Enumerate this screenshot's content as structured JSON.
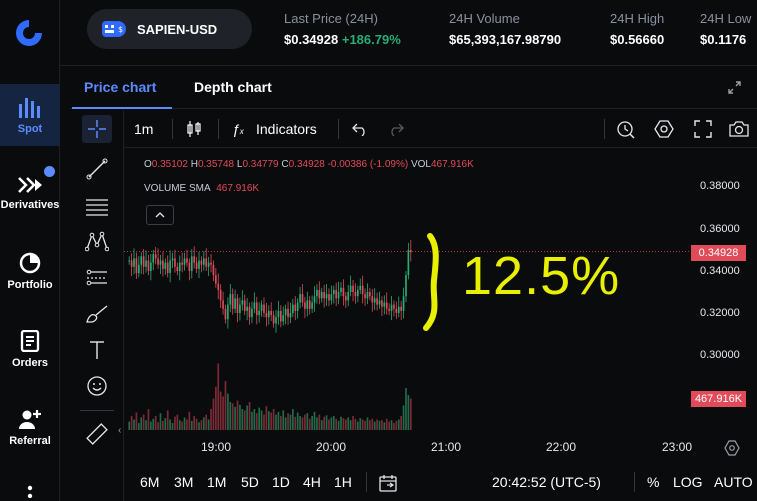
{
  "nav": {
    "items": [
      {
        "label": "Spot",
        "icon": "bar-chart-icon",
        "active": true
      },
      {
        "label": "Derivatives",
        "icon": "derivatives-icon"
      },
      {
        "label": "Portfolio",
        "icon": "pie-chart-icon"
      },
      {
        "label": "Orders",
        "icon": "document-icon"
      },
      {
        "label": "Referral",
        "icon": "add-user-icon"
      }
    ]
  },
  "header": {
    "pair": "SAPIEN-USD",
    "stats": [
      {
        "key": "Last Price (24H)",
        "value": "$0.34928",
        "change": "+186.79%"
      },
      {
        "key": "24H Volume",
        "value": "$65,393,167.98790"
      },
      {
        "key": "24H High",
        "value": "$0.56660"
      },
      {
        "key": "24H Low",
        "value": "$0.1176"
      }
    ]
  },
  "tabs": [
    "Price chart",
    "Depth chart"
  ],
  "toolbar": {
    "interval": "1m",
    "indicators": "Indicators"
  },
  "legend": {
    "o_label": "O",
    "o": "0.35102",
    "h_label": "H",
    "h": "0.35748",
    "l_label": "L",
    "l": "0.34779",
    "c_label": "C",
    "c": "0.34928",
    "change": "-0.00386 (-1.09%)",
    "vol_label": "VOL",
    "vol": "467.916K",
    "sma_label": "VOLUME SMA",
    "sma": "467.916K"
  },
  "annotation": "12.5%",
  "chart_data": {
    "type": "candlestick",
    "y_ticks": [
      "0.38000",
      "0.36000",
      "0.34000",
      "0.32000",
      "0.30000"
    ],
    "ylim": [
      0.297,
      0.388
    ],
    "x_ticks": [
      "19:00",
      "20:00",
      "21:00",
      "22:00",
      "23:00"
    ],
    "last_price": "0.34928",
    "last_volume": "467.916K",
    "price_path": [
      0.345,
      0.342,
      0.346,
      0.339,
      0.343,
      0.347,
      0.342,
      0.345,
      0.34,
      0.344,
      0.348,
      0.346,
      0.343,
      0.345,
      0.341,
      0.344,
      0.339,
      0.345,
      0.346,
      0.342,
      0.34,
      0.344,
      0.343,
      0.346,
      0.344,
      0.34,
      0.347,
      0.344,
      0.341,
      0.345,
      0.343,
      0.346,
      0.342,
      0.344,
      0.343,
      0.338,
      0.334,
      0.331,
      0.326,
      0.322,
      0.317,
      0.324,
      0.329,
      0.322,
      0.327,
      0.32,
      0.324,
      0.326,
      0.321,
      0.323,
      0.318,
      0.322,
      0.325,
      0.319,
      0.321,
      0.324,
      0.32,
      0.318,
      0.321,
      0.319,
      0.315,
      0.318,
      0.321,
      0.316,
      0.319,
      0.322,
      0.318,
      0.32,
      0.324,
      0.321,
      0.325,
      0.329,
      0.325,
      0.322,
      0.326,
      0.322,
      0.325,
      0.328,
      0.331,
      0.327,
      0.33,
      0.327,
      0.329,
      0.326,
      0.329,
      0.331,
      0.327,
      0.33,
      0.332,
      0.328,
      0.326,
      0.33,
      0.333,
      0.33,
      0.328,
      0.331,
      0.333,
      0.329,
      0.327,
      0.33,
      0.328,
      0.325,
      0.327,
      0.324,
      0.326,
      0.323,
      0.325,
      0.322,
      0.321,
      0.324,
      0.322,
      0.32,
      0.323,
      0.321,
      0.328,
      0.338,
      0.35,
      0.349
    ],
    "volumes": [
      0.12,
      0.2,
      0.15,
      0.25,
      0.1,
      0.18,
      0.22,
      0.14,
      0.3,
      0.12,
      0.16,
      0.2,
      0.11,
      0.24,
      0.13,
      0.17,
      0.28,
      0.15,
      0.1,
      0.19,
      0.22,
      0.14,
      0.12,
      0.18,
      0.15,
      0.26,
      0.13,
      0.2,
      0.16,
      0.11,
      0.14,
      0.18,
      0.22,
      0.15,
      0.3,
      0.45,
      0.62,
      0.95,
      0.55,
      0.48,
      0.7,
      0.52,
      0.4,
      0.38,
      0.33,
      0.42,
      0.36,
      0.3,
      0.28,
      0.35,
      0.4,
      0.26,
      0.3,
      0.24,
      0.32,
      0.28,
      0.22,
      0.34,
      0.27,
      0.25,
      0.3,
      0.22,
      0.26,
      0.2,
      0.28,
      0.18,
      0.24,
      0.22,
      0.3,
      0.19,
      0.25,
      0.2,
      0.18,
      0.22,
      0.24,
      0.16,
      0.2,
      0.26,
      0.18,
      0.22,
      0.14,
      0.19,
      0.21,
      0.15,
      0.18,
      0.2,
      0.16,
      0.13,
      0.19,
      0.17,
      0.15,
      0.18,
      0.14,
      0.2,
      0.16,
      0.12,
      0.17,
      0.15,
      0.13,
      0.18,
      0.14,
      0.16,
      0.12,
      0.15,
      0.13,
      0.14,
      0.11,
      0.16,
      0.12,
      0.14,
      0.1,
      0.13,
      0.15,
      0.2,
      0.35,
      0.6,
      0.5,
      0.45
    ]
  },
  "bottom": {
    "ranges": [
      "6M",
      "3M",
      "1M",
      "5D",
      "1D",
      "4H",
      "1H"
    ],
    "time": "20:42:52 (UTC-5)",
    "percent": "%",
    "log": "LOG",
    "auto": "AUTO"
  }
}
